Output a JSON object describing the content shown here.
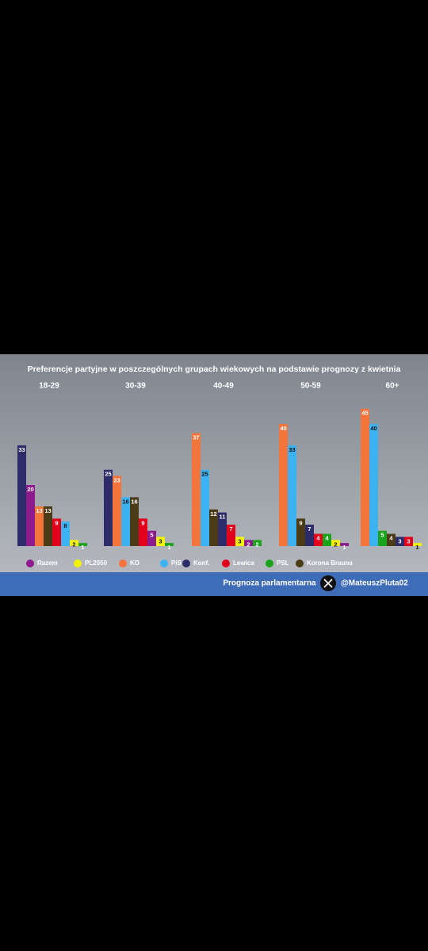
{
  "chart_data": {
    "type": "bar",
    "title": "Preferencje partyjne w poszczególnych grupach wiekowych na podstawie prognozy z kwietnia",
    "categories": [
      "18-29",
      "30-39",
      "40-49",
      "50-59",
      "60+"
    ],
    "series": [
      {
        "name": "Razem",
        "color": "#8e1b8e",
        "values": [
          20,
          5,
          2,
          1,
          null
        ]
      },
      {
        "name": "PL2050",
        "color": "#f2f20a",
        "values": [
          2,
          3,
          3,
          2,
          1
        ]
      },
      {
        "name": "KO",
        "color": "#f4743b",
        "values": [
          13,
          23,
          37,
          40,
          45
        ]
      },
      {
        "name": "PiS",
        "color": "#3db2f2",
        "values": [
          8,
          16,
          25,
          33,
          40
        ]
      },
      {
        "name": "Konf.",
        "color": "#2c2c6a",
        "values": [
          33,
          25,
          11,
          7,
          3
        ]
      },
      {
        "name": "Lewica",
        "color": "#e2001a",
        "values": [
          9,
          9,
          7,
          4,
          3
        ]
      },
      {
        "name": "PSL",
        "color": "#1ca31c",
        "values": [
          1,
          1,
          2,
          4,
          5
        ]
      },
      {
        "name": "Korona Brauna",
        "color": "#4b3b17",
        "values": [
          13,
          16,
          12,
          9,
          4
        ]
      }
    ]
  },
  "footer": {
    "label": "Prognoza parlamentarna",
    "handle": "@MateuszPluta02"
  }
}
